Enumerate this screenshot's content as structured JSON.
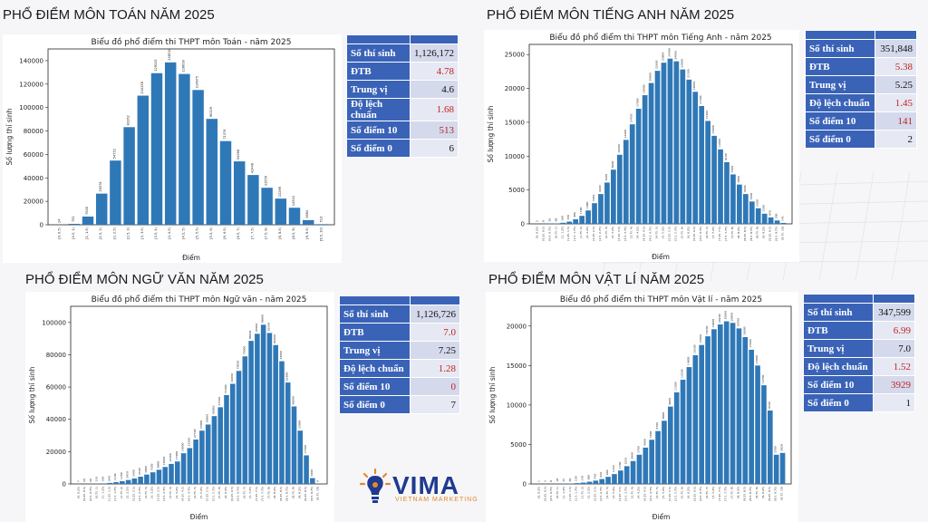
{
  "panels": [
    {
      "heading": "PHỔ ĐIỂM MÔN TOÁN NĂM 2025",
      "stats": [
        {
          "label": "Số thí sinh",
          "value": "1,126,172",
          "red": false
        },
        {
          "label": "ĐTB",
          "value": "4.78",
          "red": true
        },
        {
          "label": "Trung vị",
          "value": "4.6",
          "red": false
        },
        {
          "label": "Độ lệch chuẩn",
          "value": "1.68",
          "red": true
        },
        {
          "label": "Số điểm 10",
          "value": "513",
          "red": true
        },
        {
          "label": "Số điểm 0",
          "value": "6",
          "red": false
        }
      ]
    },
    {
      "heading": "PHỔ ĐIỂM MÔN TIẾNG ANH NĂM 2025",
      "stats": [
        {
          "label": "Số thí sinh",
          "value": "351,848",
          "red": false
        },
        {
          "label": "ĐTB",
          "value": "5.38",
          "red": true
        },
        {
          "label": "Trung vị",
          "value": "5.25",
          "red": false
        },
        {
          "label": "Độ lệch chuẩn",
          "value": "1.45",
          "red": true
        },
        {
          "label": "Số điểm 10",
          "value": "141",
          "red": true
        },
        {
          "label": "Số điểm 0",
          "value": "2",
          "red": false
        }
      ]
    },
    {
      "heading": "PHỔ ĐIỂM MÔN NGỮ VĂN NĂM 2025",
      "stats": [
        {
          "label": "Số thí sinh",
          "value": "1,126,726",
          "red": false
        },
        {
          "label": "ĐTB",
          "value": "7.0",
          "red": true
        },
        {
          "label": "Trung vị",
          "value": "7.25",
          "red": false
        },
        {
          "label": "Độ lệch chuẩn",
          "value": "1.28",
          "red": true
        },
        {
          "label": "Số điểm 10",
          "value": "0",
          "red": true
        },
        {
          "label": "Số điểm 0",
          "value": "7",
          "red": false
        }
      ]
    },
    {
      "heading": "PHỔ ĐIỂM MÔN VẬT LÍ NĂM 2025",
      "stats": [
        {
          "label": "Số thí sinh",
          "value": "347,599",
          "red": false
        },
        {
          "label": "ĐTB",
          "value": "6.99",
          "red": true
        },
        {
          "label": "Trung vị",
          "value": "7.0",
          "red": false
        },
        {
          "label": "Độ lệch chuẩn",
          "value": "1.52",
          "red": true
        },
        {
          "label": "Số điểm 10",
          "value": "3929",
          "red": true
        },
        {
          "label": "Số điểm 0",
          "value": "1",
          "red": false
        }
      ]
    }
  ],
  "logo": {
    "name": "VIMA",
    "tagline": "VIETNAM MARKETING"
  },
  "colors": {
    "bar": "#2f78b7",
    "table_header": "#3a63b8",
    "highlight": "#c0241e"
  },
  "chart_data": [
    {
      "type": "bar",
      "title": "Biểu đồ phổ điểm thi THPT môn Toán - năm 2025",
      "xlabel": "Điểm",
      "ylabel": "Số lượng thí sinh",
      "ylim": [
        0,
        150000
      ],
      "yticks": [
        0,
        20000,
        40000,
        60000,
        80000,
        100000,
        120000,
        140000
      ],
      "categories": [
        "[0, 0.5)",
        "[0.5, 1)",
        "[1, 1.5)",
        "[1.5, 2)",
        "[2, 2.5)",
        "[2.5, 3)",
        "[3, 3.5)",
        "[3.5, 4)",
        "[4, 4.5)",
        "[4.5, 5)",
        "[5, 5.5)",
        "[5.5, 6)",
        "[6, 6.5)",
        "[6.5, 7)",
        "[7, 7.5)",
        "[7.5, 8)",
        "[8, 8.5)",
        "[8.5, 9)",
        "[9, 9.5)",
        "[9.5, 10]"
      ],
      "values": [
        24,
        752,
        7000,
        26576,
        54752,
        83262,
        110158,
        129315,
        138510,
        128639,
        114975,
        90329,
        71376,
        54068,
        42449,
        31556,
        22299,
        14510,
        3984,
        513
      ]
    },
    {
      "type": "bar",
      "title": "Biểu đồ phổ điểm thi THPT môn Tiếng Anh - năm 2025",
      "xlabel": "Điểm",
      "ylabel": "Số lượng thí sinh",
      "ylim": [
        0,
        26500
      ],
      "yticks": [
        0,
        5000,
        10000,
        15000,
        20000,
        25000
      ],
      "categories": [
        "[0, 0.25)",
        "[0.25, 0.5)",
        "[0.5, 0.75)",
        "[0.75, 1)",
        "[1, 1.25)",
        "[1.25, 1.5)",
        "[1.5, 1.75)",
        "[1.75, 2)",
        "[2, 2.25)",
        "[2.25, 2.5)",
        "[2.5, 2.75)",
        "[2.75, 3)",
        "[3, 3.25)",
        "[3.25, 3.5)",
        "[3.5, 3.75)",
        "[3.75, 4)",
        "[4, 4.25)",
        "[4.25, 4.5)",
        "[4.5, 4.75)",
        "[4.75, 5)",
        "[5, 5.25)",
        "[5.25, 5.5)",
        "[5.5, 5.75)",
        "[5.75, 6)",
        "[6, 6.25)",
        "[6.25, 6.5)",
        "[6.5, 6.75)",
        "[6.75, 7)",
        "[7, 7.25)",
        "[7.25, 7.5)",
        "[7.5, 7.75)",
        "[7.75, 8)",
        "[8, 8.25)",
        "[8.25, 8.5)",
        "[8.5, 8.75)",
        "[8.75, 9)",
        "[9, 9.25)",
        "[9.25, 9.5)",
        "[9.5, 9.75)",
        "[9.75, 10]"
      ],
      "values": [
        2,
        8,
        30,
        68,
        160,
        330,
        680,
        1180,
        1980,
        3050,
        4400,
        6100,
        8000,
        10200,
        12400,
        14700,
        17000,
        19000,
        20800,
        22600,
        23800,
        24400,
        24000,
        22800,
        21300,
        19500,
        17400,
        15200,
        13000,
        11000,
        9100,
        7300,
        5800,
        4400,
        3300,
        2300,
        1500,
        950,
        500,
        141
      ]
    },
    {
      "type": "bar",
      "title": "Biểu đồ phổ điểm thi THPT môn Ngữ văn - năm 2025",
      "xlabel": "Điểm",
      "ylabel": "Số lượng thí sinh",
      "ylim": [
        0,
        110000
      ],
      "yticks": [
        0,
        20000,
        40000,
        60000,
        80000,
        100000
      ],
      "categories": [
        "[0, 0.25)",
        "[0.25, 0.5)",
        "[0.5, 0.75)",
        "[0.75, 1)",
        "[1, 1.25)",
        "[1.25, 1.5)",
        "[1.5, 1.75)",
        "[1.75, 2)",
        "[2, 2.25)",
        "[2.25, 2.5)",
        "[2.5, 2.75)",
        "[2.75, 3)",
        "[3, 3.25)",
        "[3.25, 3.5)",
        "[3.5, 3.75)",
        "[3.75, 4)",
        "[4, 4.25)",
        "[4.25, 4.5)",
        "[4.5, 4.75)",
        "[4.75, 5)",
        "[5, 5.25)",
        "[5.25, 5.5)",
        "[5.5, 5.75)",
        "[5.75, 6)",
        "[6, 6.25)",
        "[6.25, 6.5)",
        "[6.5, 6.75)",
        "[6.75, 7)",
        "[7, 7.25)",
        "[7.25, 7.5)",
        "[7.5, 7.75)",
        "[7.75, 8)",
        "[8, 8.25)",
        "[8.25, 8.5)",
        "[8.5, 8.75)",
        "[8.75, 9)",
        "[9, 9.25)",
        "[9.25, 9.5)",
        "[9.5, 9.75)",
        "[9.75, 10]"
      ],
      "values": [
        7,
        20,
        60,
        150,
        330,
        640,
        1100,
        1700,
        2450,
        3400,
        4500,
        5800,
        7200,
        8800,
        10500,
        12400,
        13900,
        19000,
        22200,
        27500,
        33000,
        36800,
        42000,
        47500,
        55000,
        62000,
        70000,
        79000,
        88600,
        93000,
        98600,
        93500,
        86000,
        76000,
        62800,
        48000,
        33000,
        17700,
        3600,
        0
      ]
    },
    {
      "type": "bar",
      "title": "Biểu đồ phổ điểm thi THPT môn Vật lí - năm 2025",
      "xlabel": "Điểm",
      "ylabel": "Số lượng thí sinh",
      "ylim": [
        0,
        22500
      ],
      "yticks": [
        0,
        5000,
        10000,
        15000,
        20000
      ],
      "categories": [
        "[0, 0.25)",
        "[0.25, 0.5)",
        "[0.5, 0.75)",
        "[0.75, 1)",
        "[1, 1.25)",
        "[1.25, 1.5)",
        "[1.5, 1.75)",
        "[1.75, 2)",
        "[2, 2.25)",
        "[2.25, 2.5)",
        "[2.5, 2.75)",
        "[2.75, 3)",
        "[3, 3.25)",
        "[3.25, 3.5)",
        "[3.5, 3.75)",
        "[3.75, 4)",
        "[4, 4.25)",
        "[4.25, 4.5)",
        "[4.5, 4.75)",
        "[4.75, 5)",
        "[5, 5.25)",
        "[5.25, 5.5)",
        "[5.5, 5.75)",
        "[5.75, 6)",
        "[6, 6.25)",
        "[6.25, 6.5)",
        "[6.5, 6.75)",
        "[6.75, 7)",
        "[7, 7.25)",
        "[7.25, 7.5)",
        "[7.5, 7.75)",
        "[7.75, 8)",
        "[8, 8.25)",
        "[8.25, 8.5)",
        "[8.5, 8.75)",
        "[8.75, 9)",
        "[9, 9.25)",
        "[9.25, 9.5)",
        "[9.5, 9.75)",
        "[9.75, 10]"
      ],
      "values": [
        1,
        3,
        8,
        18,
        35,
        60,
        100,
        170,
        280,
        420,
        620,
        900,
        1250,
        1700,
        2250,
        2900,
        3700,
        4600,
        5600,
        6700,
        8000,
        9800,
        11600,
        13200,
        14800,
        16300,
        17600,
        18700,
        19600,
        20200,
        20600,
        20400,
        19700,
        18600,
        17000,
        15000,
        12500,
        9300,
        3700,
        3929
      ]
    }
  ]
}
